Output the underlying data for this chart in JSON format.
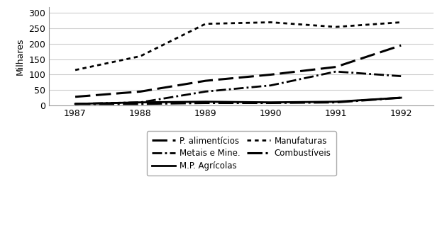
{
  "years": [
    1987,
    1988,
    1989,
    1990,
    1991,
    1992
  ],
  "series": {
    "P. alimentícios": [
      28,
      45,
      80,
      100,
      125,
      195
    ],
    "Metais e Mine.": [
      5,
      10,
      45,
      65,
      110,
      95
    ],
    "M.P. Agrícolas": [
      5,
      10,
      12,
      10,
      12,
      25
    ],
    "Manufaturas": [
      115,
      160,
      265,
      270,
      255,
      270
    ],
    "Combustíveis": [
      5,
      5,
      8,
      8,
      10,
      25
    ]
  },
  "ylabel": "Milhares",
  "ylim": [
    0,
    320
  ],
  "yticks": [
    0,
    50,
    100,
    150,
    200,
    250,
    300
  ],
  "xlim": [
    1986.6,
    1992.5
  ],
  "background_color": "#ffffff",
  "line_color": "#000000",
  "grid_color": "#cccccc"
}
